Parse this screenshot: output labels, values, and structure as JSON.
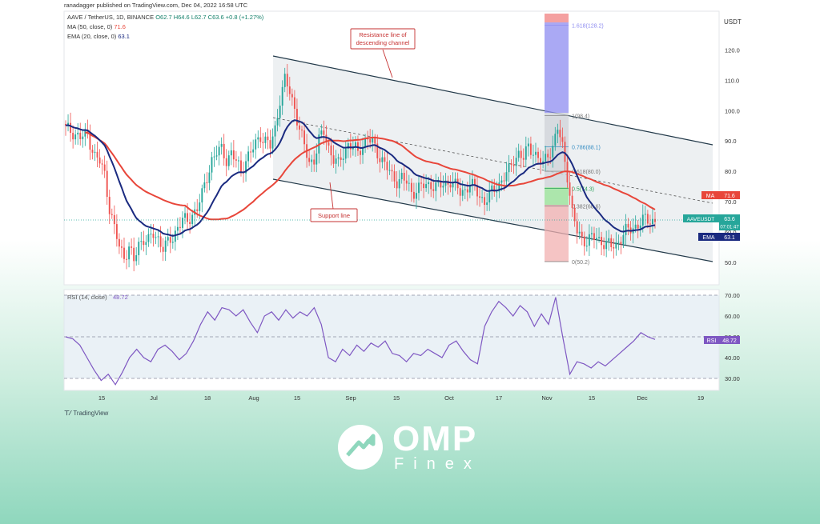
{
  "header": {
    "published": "ranadagger published on TradingView.com, Dec 04, 2022 16:58 UTC",
    "symbol_line": "AAVE / TetherUS, 1D, BINANCE",
    "ohlc": "O62.7 H64.6 L62.7 C63.6 +0.8 (+1.27%)",
    "ma_label": "MA (50, close, 0)",
    "ma_value": "71.6",
    "ema_label": "EMA (20, close, 0)",
    "ema_value": "63.1"
  },
  "footer": {
    "tradingview": "TradingView"
  },
  "brand": {
    "main": "OMP",
    "sub": "Finex"
  },
  "colors": {
    "up": "#26a69a",
    "down": "#ef5350",
    "ma": "#e8463a",
    "ema": "#1a2a80",
    "rsi": "#7e57c2",
    "channel": "#233a4a",
    "support_box": "#c53030"
  },
  "annotations": {
    "resistance": "Resistance line of descending channel",
    "support": "Support line"
  },
  "chart_data": [
    {
      "type": "candlestick",
      "title": "AAVE / TetherUS, 1D, BINANCE",
      "y_axis_title": "USDT",
      "ylim": [
        45,
        130
      ],
      "y_ticks": [
        50,
        60,
        70,
        80,
        90,
        100,
        110,
        120
      ],
      "x_ticks": [
        "15",
        "Jul",
        "18",
        "Aug",
        "15",
        "Sep",
        "15",
        "Oct",
        "17",
        "Nov",
        "15",
        "Dec",
        "19"
      ],
      "close_path": [
        [
          0,
          94
        ],
        [
          3,
          93
        ],
        [
          6,
          91
        ],
        [
          9,
          92
        ],
        [
          12,
          85
        ],
        [
          14,
          83
        ],
        [
          16,
          79
        ],
        [
          18,
          68
        ],
        [
          20,
          61
        ],
        [
          22,
          55
        ],
        [
          24,
          52
        ],
        [
          26,
          55
        ],
        [
          28,
          50
        ],
        [
          30,
          56
        ],
        [
          32,
          58
        ],
        [
          34,
          57
        ],
        [
          36,
          59
        ],
        [
          38,
          58
        ],
        [
          40,
          55
        ],
        [
          42,
          56
        ],
        [
          44,
          58
        ],
        [
          46,
          62
        ],
        [
          48,
          64
        ],
        [
          50,
          63
        ],
        [
          52,
          66
        ],
        [
          54,
          68
        ],
        [
          56,
          72
        ],
        [
          58,
          78
        ],
        [
          60,
          84
        ],
        [
          62,
          86
        ],
        [
          64,
          87
        ],
        [
          66,
          84
        ],
        [
          68,
          86
        ],
        [
          70,
          83
        ],
        [
          72,
          80
        ],
        [
          74,
          84
        ],
        [
          76,
          86
        ],
        [
          78,
          89
        ],
        [
          80,
          92
        ],
        [
          82,
          90
        ],
        [
          84,
          88
        ],
        [
          86,
          94
        ],
        [
          88,
          104
        ],
        [
          90,
          110
        ],
        [
          92,
          106
        ],
        [
          94,
          101
        ],
        [
          96,
          94
        ],
        [
          98,
          88
        ],
        [
          100,
          83
        ],
        [
          102,
          84
        ],
        [
          104,
          90
        ],
        [
          106,
          93
        ],
        [
          108,
          88
        ],
        [
          110,
          84
        ],
        [
          112,
          82
        ],
        [
          114,
          86
        ],
        [
          116,
          89
        ],
        [
          118,
          88
        ],
        [
          120,
          86
        ],
        [
          122,
          89
        ],
        [
          124,
          91
        ],
        [
          126,
          89
        ],
        [
          128,
          86
        ],
        [
          130,
          84
        ],
        [
          132,
          81
        ],
        [
          134,
          78
        ],
        [
          136,
          77
        ],
        [
          138,
          78
        ],
        [
          140,
          76
        ],
        [
          142,
          73
        ],
        [
          144,
          74
        ],
        [
          146,
          75
        ],
        [
          148,
          75
        ],
        [
          150,
          76
        ],
        [
          152,
          75
        ],
        [
          154,
          75
        ],
        [
          156,
          76
        ],
        [
          158,
          77
        ],
        [
          160,
          75
        ],
        [
          162,
          73
        ],
        [
          164,
          74
        ],
        [
          166,
          76
        ],
        [
          168,
          74
        ],
        [
          170,
          72
        ],
        [
          172,
          70
        ],
        [
          174,
          72
        ],
        [
          176,
          74
        ],
        [
          178,
          76
        ],
        [
          180,
          78
        ],
        [
          182,
          80
        ],
        [
          184,
          84
        ],
        [
          186,
          86
        ],
        [
          188,
          84
        ],
        [
          190,
          88
        ],
        [
          192,
          87
        ],
        [
          194,
          84
        ],
        [
          196,
          82
        ],
        [
          198,
          86
        ],
        [
          200,
          88
        ],
        [
          202,
          94
        ],
        [
          204,
          88
        ],
        [
          206,
          79
        ],
        [
          208,
          66
        ],
        [
          210,
          60
        ],
        [
          212,
          58
        ],
        [
          214,
          57
        ],
        [
          216,
          58
        ],
        [
          218,
          58
        ],
        [
          220,
          57
        ],
        [
          222,
          56
        ],
        [
          224,
          55
        ],
        [
          226,
          56
        ],
        [
          228,
          58
        ],
        [
          230,
          60
        ],
        [
          232,
          61
        ],
        [
          234,
          62
        ],
        [
          236,
          63
        ],
        [
          238,
          64
        ],
        [
          240,
          64
        ],
        [
          242,
          63.6
        ]
      ],
      "ma50": {
        "label": "MA",
        "value": "71.6"
      },
      "ema20": {
        "label": "EMA",
        "value": "63.1"
      },
      "fibonacci": [
        {
          "label": "1.618(128.2)",
          "price": 128.2
        },
        {
          "label": "1(98.4)",
          "price": 98.4
        },
        {
          "label": "0.786(88.1)",
          "price": 88.1
        },
        {
          "label": "0.618(80.0)",
          "price": 80.0
        },
        {
          "label": "0.5(74.3)",
          "price": 74.3
        },
        {
          "label": "0.382(68.6)",
          "price": 68.6
        },
        {
          "label": "0(50.2)",
          "price": 50.2
        }
      ],
      "price_tags": [
        {
          "name": "MA",
          "value": "71.6"
        },
        {
          "name": "AAVEUSDT",
          "value": "63.6",
          "timer": "07:01:47"
        },
        {
          "name": "EMA",
          "value": "63.1"
        }
      ]
    },
    {
      "type": "line",
      "title": "RSI (14, close)",
      "value": "48.72",
      "ylim": [
        25,
        72
      ],
      "y_ticks": [
        30,
        40,
        50,
        60,
        70
      ],
      "band": [
        30,
        70
      ],
      "tag": {
        "name": "RSI",
        "value": "48.72"
      },
      "path": [
        [
          0,
          50
        ],
        [
          4,
          49
        ],
        [
          8,
          46
        ],
        [
          12,
          40
        ],
        [
          16,
          34
        ],
        [
          20,
          29
        ],
        [
          24,
          32
        ],
        [
          28,
          27
        ],
        [
          32,
          33
        ],
        [
          36,
          40
        ],
        [
          40,
          44
        ],
        [
          44,
          40
        ],
        [
          48,
          38
        ],
        [
          52,
          44
        ],
        [
          56,
          46
        ],
        [
          60,
          43
        ],
        [
          64,
          39
        ],
        [
          68,
          42
        ],
        [
          72,
          48
        ],
        [
          76,
          56
        ],
        [
          80,
          62
        ],
        [
          84,
          58
        ],
        [
          88,
          64
        ],
        [
          92,
          63
        ],
        [
          96,
          60
        ],
        [
          100,
          63
        ],
        [
          104,
          57
        ],
        [
          108,
          52
        ],
        [
          112,
          60
        ],
        [
          116,
          62
        ],
        [
          120,
          58
        ],
        [
          124,
          63
        ],
        [
          128,
          59
        ],
        [
          132,
          62
        ],
        [
          136,
          60
        ],
        [
          140,
          64
        ],
        [
          144,
          56
        ],
        [
          148,
          40
        ],
        [
          152,
          38
        ],
        [
          156,
          44
        ],
        [
          160,
          41
        ],
        [
          164,
          46
        ],
        [
          168,
          43
        ],
        [
          172,
          47
        ],
        [
          176,
          45
        ],
        [
          180,
          48
        ],
        [
          184,
          42
        ],
        [
          188,
          41
        ],
        [
          192,
          38
        ],
        [
          196,
          42
        ],
        [
          200,
          41
        ],
        [
          204,
          44
        ],
        [
          208,
          42
        ],
        [
          212,
          40
        ],
        [
          216,
          46
        ],
        [
          220,
          48
        ],
        [
          224,
          43
        ],
        [
          228,
          39
        ],
        [
          232,
          37
        ],
        [
          236,
          55
        ],
        [
          240,
          62
        ],
        [
          244,
          67
        ],
        [
          248,
          64
        ],
        [
          252,
          60
        ],
        [
          256,
          65
        ],
        [
          260,
          62
        ],
        [
          264,
          55
        ],
        [
          268,
          61
        ],
        [
          272,
          56
        ],
        [
          276,
          69
        ],
        [
          280,
          50
        ],
        [
          284,
          32
        ],
        [
          288,
          38
        ],
        [
          292,
          37
        ],
        [
          296,
          35
        ],
        [
          300,
          38
        ],
        [
          304,
          36
        ],
        [
          308,
          39
        ],
        [
          312,
          42
        ],
        [
          316,
          45
        ],
        [
          320,
          48
        ],
        [
          324,
          52
        ],
        [
          328,
          50
        ],
        [
          332,
          48.72
        ]
      ]
    }
  ]
}
